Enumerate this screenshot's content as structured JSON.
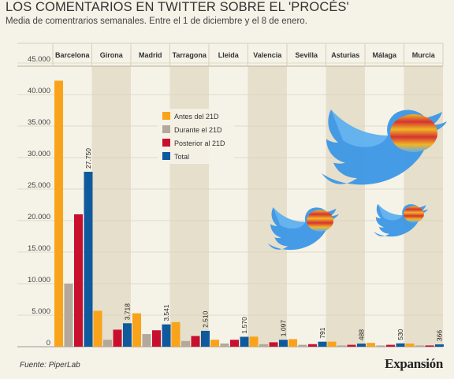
{
  "title": "LOS COMENTARIOS EN TWITTER SOBRE EL 'PROCÉS'",
  "subtitle": "Media de comentrarios semanales. Entre el 1 de diciembre y el 8 de enero.",
  "source_prefix": "Fuente: ",
  "source_name": "PiperLab",
  "logo_text": "Expansión",
  "colors": {
    "background": "#f5f2e7",
    "band": "#e6dfcb",
    "series": [
      "#f9a31a",
      "#b3a89a",
      "#c8102e",
      "#0f5a9c"
    ]
  },
  "icons": [
    "twitter-bird-icon",
    "twitter-bird-icon",
    "twitter-bird-icon"
  ],
  "chart_data": {
    "type": "bar",
    "categories": [
      "Barcelona",
      "Girona",
      "Madrid",
      "Tarragona",
      "Lleida",
      "Valencia",
      "Sevilla",
      "Asturias",
      "Málaga",
      "Murcia"
    ],
    "series": [
      {
        "name": "Antes del 21D",
        "values": [
          42200,
          5700,
          5300,
          3900,
          1100,
          1600,
          1200,
          800,
          600,
          500
        ]
      },
      {
        "name": "Durante el 21D",
        "values": [
          10000,
          1100,
          2000,
          900,
          500,
          400,
          300,
          200,
          200,
          200
        ]
      },
      {
        "name": "Posterior al 21D",
        "values": [
          21000,
          2700,
          2600,
          1700,
          1100,
          700,
          400,
          300,
          300,
          200
        ]
      },
      {
        "name": "Total",
        "values": [
          27750,
          3718,
          3541,
          2510,
          1570,
          1097,
          791,
          488,
          530,
          366
        ]
      }
    ],
    "data_labels": [
      "27.750",
      "3.718",
      "3.541",
      "2.510",
      "1.570",
      "1.097",
      "791",
      "488",
      "530",
      "366"
    ],
    "y_ticks": [
      0,
      5000,
      10000,
      15000,
      20000,
      25000,
      30000,
      35000,
      40000,
      45000
    ],
    "y_tick_labels": [
      "0",
      "5.000",
      "10.000",
      "15.000",
      "20.000",
      "25.000",
      "30.000",
      "35.000",
      "40.000",
      "45.000"
    ],
    "ylim": [
      0,
      45000
    ],
    "legend_position": "top-center",
    "grid": true
  }
}
